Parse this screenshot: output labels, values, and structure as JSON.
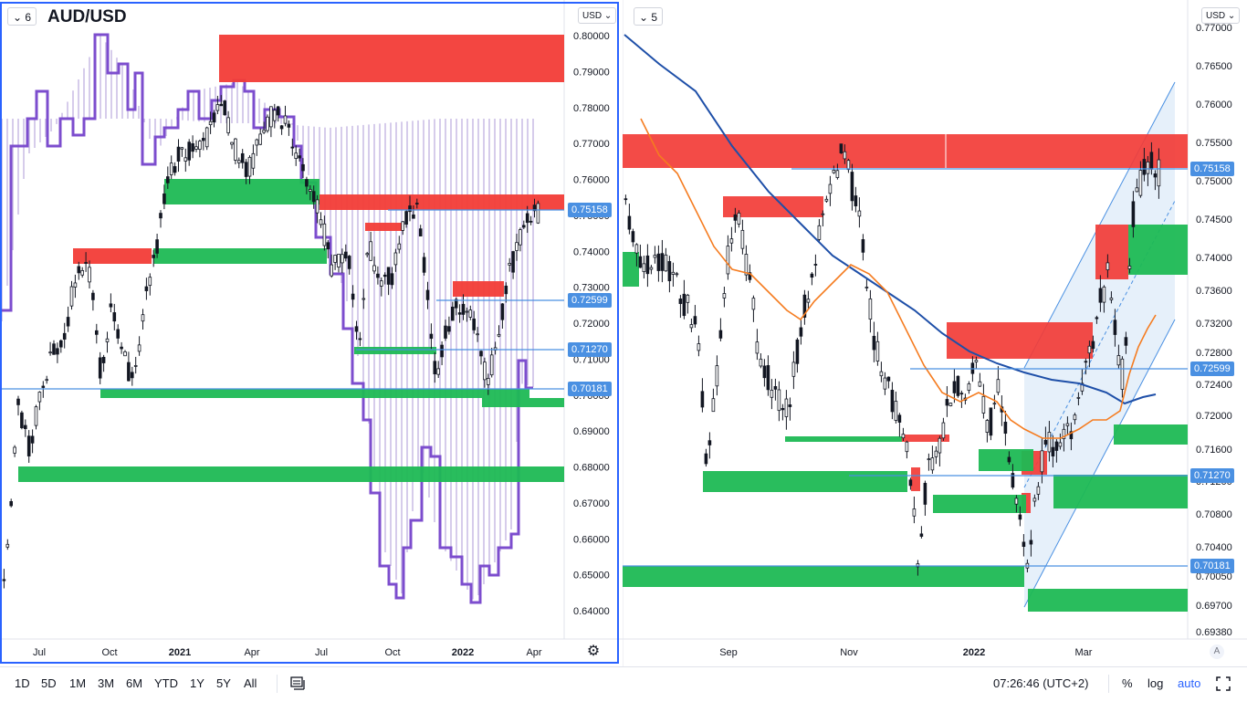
{
  "left_chart": {
    "symbol": "AUD/USD",
    "layout_badge": "6",
    "currency_button": "USD",
    "y_ticks": [
      "0.80000",
      "0.79000",
      "0.78000",
      "0.77000",
      "0.76000",
      "0.75000",
      "0.74000",
      "0.73000",
      "0.72000",
      "0.71000",
      "0.70000",
      "0.69000",
      "0.68000",
      "0.67000",
      "0.66000",
      "0.65000",
      "0.64000"
    ],
    "x_ticks": [
      "Jul",
      "Oct",
      "2021",
      "Apr",
      "Jul",
      "Oct",
      "2022",
      "Apr"
    ],
    "price_levels": [
      "0.75158",
      "0.72599",
      "0.71270",
      "0.70181"
    ]
  },
  "right_chart": {
    "layout_badge": "5",
    "currency_button": "USD",
    "y_ticks": [
      "0.77000",
      "0.76500",
      "0.76000",
      "0.75500",
      "0.75000",
      "0.74500",
      "0.74000",
      "0.73600",
      "0.73200",
      "0.72800",
      "0.72400",
      "0.72000",
      "0.71600",
      "0.71200",
      "0.70800",
      "0.70400",
      "0.70050",
      "0.69700",
      "0.69380"
    ],
    "x_ticks": [
      "Sep",
      "Nov",
      "2022",
      "Mar"
    ],
    "price_levels": [
      "0.75158",
      "0.72599",
      "0.71270",
      "0.70181"
    ],
    "scale_badge": "A"
  },
  "bottom_bar": {
    "ranges": [
      "1D",
      "5D",
      "1M",
      "3M",
      "6M",
      "YTD",
      "1Y",
      "5Y",
      "All"
    ],
    "clock": "07:26:46 (UTC+2)",
    "percent": "%",
    "log": "log",
    "auto": "auto"
  },
  "colors": {
    "supply_zone": "#f23c37",
    "demand_zone": "#1db954",
    "price_line": "#4a90e2",
    "accent": "#2962ff",
    "ichimoku": "#7c4dce",
    "sma_orange": "#f57c20",
    "sma_blue": "#1e4fa8"
  },
  "icons": [
    "chevron-down-icon",
    "gear-icon",
    "compare-icon",
    "fullscreen-icon"
  ]
}
